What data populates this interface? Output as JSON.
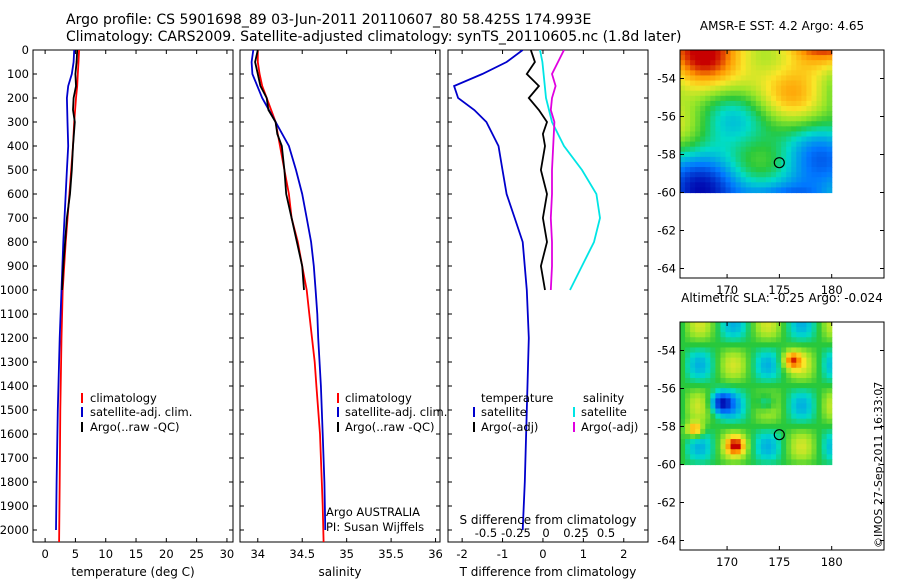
{
  "header": {
    "line1": "Argo profile: CS 5901698_89 03-Jun-2011 20110607_80 58.425S 174.993E",
    "line2": "Climatology: CARS2009. Satellite-adjusted climatology: synTS_20110605.nc (1.8d later)"
  },
  "stamp": "©IMOS 27-Sep-2011 16:33:07",
  "colors": {
    "climatology": "#ff0000",
    "satellite": "#0000cc",
    "argo": "#000000",
    "sat_s": "#00e5e5",
    "argo_s": "#e000e0"
  },
  "chart_data": [
    {
      "id": "temperature",
      "type": "line",
      "xlabel": "temperature (deg C)",
      "ylabel": "",
      "xlim": [
        -2,
        31
      ],
      "ylim": [
        2050,
        0
      ],
      "xticks": [
        0,
        5,
        10,
        15,
        20,
        25,
        30
      ],
      "xtick_labels": [
        "0",
        "5",
        "10",
        "15",
        "20",
        "25",
        "30"
      ],
      "yticks": [
        0,
        100,
        200,
        300,
        400,
        500,
        600,
        700,
        800,
        900,
        1000,
        1100,
        1200,
        1300,
        1400,
        1500,
        1600,
        1700,
        1800,
        1900,
        2000
      ],
      "ytick_labels": [
        "0",
        "100",
        "200",
        "300",
        "400",
        "500",
        "600",
        "700",
        "800",
        "900",
        "1000",
        "1100",
        "1200",
        "1300",
        "1400",
        "1500",
        "1600",
        "1700",
        "1800",
        "1900",
        "2000"
      ],
      "legend": [
        "climatology",
        "satellite-adj. clim.",
        "Argo(..raw -QC)"
      ],
      "series": [
        {
          "name": "climatology",
          "color": "#ff0000",
          "depth": [
            0,
            50,
            100,
            150,
            200,
            300,
            400,
            500,
            600,
            800,
            1000,
            1200,
            1500,
            1800,
            2050
          ],
          "values": [
            5.6,
            5.5,
            5.4,
            5.3,
            5.1,
            4.8,
            4.6,
            4.3,
            4.0,
            3.4,
            2.9,
            2.7,
            2.5,
            2.4,
            2.3
          ]
        },
        {
          "name": "satellite-adj. clim.",
          "color": "#0000cc",
          "depth": [
            0,
            50,
            100,
            150,
            200,
            300,
            400,
            500,
            600,
            800,
            1000,
            1200,
            1500,
            1800,
            2000
          ],
          "values": [
            4.8,
            4.7,
            4.4,
            3.8,
            3.6,
            3.7,
            3.8,
            3.6,
            3.4,
            3.0,
            2.7,
            2.4,
            2.1,
            1.9,
            1.8
          ]
        },
        {
          "name": "Argo(..raw -QC)",
          "color": "#000000",
          "depth": [
            0,
            50,
            100,
            150,
            200,
            250,
            300,
            400,
            500,
            600,
            700,
            800,
            900,
            1000
          ],
          "values": [
            5.3,
            5.2,
            5.0,
            5.1,
            4.7,
            4.6,
            4.9,
            4.6,
            4.4,
            4.1,
            3.6,
            3.3,
            3.0,
            2.8
          ]
        }
      ]
    },
    {
      "id": "salinity",
      "type": "line",
      "xlabel": "salinity",
      "ylabel": "",
      "xlim": [
        33.8,
        36.05
      ],
      "ylim": [
        2050,
        0
      ],
      "xticks": [
        34,
        34.5,
        35,
        35.5,
        36
      ],
      "xtick_labels": [
        "34",
        "34.5",
        "35",
        "35.5",
        "36"
      ],
      "legend": [
        "climatology",
        "satellite-adj. clim.",
        "Argo(..raw -QC)"
      ],
      "annotation": [
        "Argo AUSTRALIA",
        "PI: Susan Wijffels"
      ],
      "series": [
        {
          "name": "climatology",
          "color": "#ff0000",
          "depth": [
            0,
            50,
            100,
            150,
            200,
            300,
            400,
            500,
            600,
            700,
            800,
            900,
            1000,
            1100,
            1200,
            1300,
            1400,
            1500,
            1600,
            1700,
            1800,
            1900,
            2050
          ],
          "values": [
            34.0,
            34.0,
            34.02,
            34.05,
            34.1,
            34.2,
            34.25,
            34.3,
            34.35,
            34.38,
            34.45,
            34.5,
            34.55,
            34.58,
            34.61,
            34.64,
            34.66,
            34.68,
            34.7,
            34.71,
            34.72,
            34.73,
            34.74
          ]
        },
        {
          "name": "satellite-adj. clim.",
          "color": "#0000cc",
          "depth": [
            0,
            50,
            100,
            200,
            300,
            400,
            500,
            600,
            700,
            800,
            900,
            1000,
            1100,
            1200,
            1400,
            1600,
            1800,
            2000
          ],
          "values": [
            33.95,
            33.93,
            33.94,
            34.05,
            34.2,
            34.35,
            34.43,
            34.5,
            34.55,
            34.6,
            34.63,
            34.65,
            34.67,
            34.68,
            34.71,
            34.73,
            34.75,
            34.76
          ]
        },
        {
          "name": "Argo(..raw -QC)",
          "color": "#000000",
          "depth": [
            0,
            50,
            100,
            150,
            200,
            250,
            300,
            350,
            400,
            500,
            600,
            700,
            800,
            900,
            1000
          ],
          "values": [
            34.0,
            33.97,
            34.0,
            34.03,
            34.1,
            34.12,
            34.2,
            34.22,
            34.27,
            34.3,
            34.32,
            34.38,
            34.44,
            34.5,
            34.52
          ]
        }
      ]
    },
    {
      "id": "difference",
      "type": "line",
      "xlabel": "T difference from climatology",
      "top_label": "S difference from climatology",
      "xlim": [
        -2.35,
        2.6
      ],
      "ylim": [
        2050,
        0
      ],
      "xticks": [
        -2,
        -1,
        0,
        1,
        2
      ],
      "xtick_labels": [
        "-2",
        "-1",
        "0",
        "1",
        "2"
      ],
      "s_ticks": [
        -0.5,
        -0.25,
        0,
        0.25,
        0.5
      ],
      "s_tick_labels": [
        "-0.5",
        "-0.25",
        "0",
        "0.25",
        "0.5"
      ],
      "legend_t": [
        "temperature",
        "satellite",
        "Argo(-adj)"
      ],
      "legend_s": [
        "salinity",
        "satellite",
        "Argo(-adj)"
      ],
      "series": [
        {
          "name": "satellite",
          "group": "temperature",
          "color": "#0000cc",
          "depth": [
            0,
            50,
            100,
            150,
            200,
            250,
            300,
            400,
            500,
            600,
            700,
            800,
            1000,
            1200,
            1500,
            1800,
            2000
          ],
          "values": [
            -0.5,
            -0.9,
            -1.5,
            -2.2,
            -2.1,
            -1.7,
            -1.4,
            -1.1,
            -1.0,
            -0.9,
            -0.7,
            -0.5,
            -0.4,
            -0.35,
            -0.4,
            -0.45,
            -0.5
          ]
        },
        {
          "name": "Argo(-adj)",
          "group": "temperature",
          "color": "#000000",
          "depth": [
            0,
            50,
            100,
            150,
            200,
            250,
            300,
            350,
            400,
            500,
            600,
            700,
            800,
            900,
            1000
          ],
          "values": [
            -0.3,
            -0.2,
            -0.4,
            -0.1,
            -0.35,
            -0.1,
            0.1,
            0.0,
            0.05,
            -0.05,
            0.1,
            0.0,
            0.1,
            -0.05,
            0.05
          ]
        },
        {
          "name": "satellite",
          "group": "salinity",
          "color": "#00e5e5",
          "depth": [
            0,
            50,
            100,
            200,
            300,
            400,
            500,
            600,
            700,
            800,
            900,
            1000
          ],
          "values": [
            -0.05,
            -0.03,
            -0.02,
            0.0,
            0.05,
            0.15,
            0.3,
            0.42,
            0.45,
            0.4,
            0.3,
            0.2
          ]
        },
        {
          "name": "Argo(-adj)",
          "group": "salinity",
          "color": "#e000e0",
          "depth": [
            0,
            50,
            100,
            150,
            200,
            250,
            300,
            400,
            500,
            600,
            700,
            800,
            900,
            1000
          ],
          "values": [
            0.15,
            0.1,
            0.05,
            0.08,
            0.05,
            0.04,
            0.07,
            0.06,
            0.05,
            0.05,
            0.04,
            0.05,
            0.05,
            0.04
          ]
        }
      ]
    },
    {
      "id": "sst_map",
      "type": "heatmap",
      "title": "AMSR-E SST: 4.2 Argo: 4.65",
      "xticks": [
        170,
        175,
        180
      ],
      "xtick_labels": [
        "170",
        "175",
        "180"
      ],
      "yticks": [
        -54,
        -56,
        -58,
        -60,
        -62,
        -64
      ],
      "ytick_labels": [
        "-54",
        "-56",
        "-58",
        "-60",
        "-62",
        "-64"
      ],
      "xlim": [
        165.5,
        185
      ],
      "ylim": [
        -52.5,
        -64.5
      ],
      "data_extent": {
        "lon": [
          165.5,
          180
        ],
        "lat": [
          -52.5,
          -60
        ]
      },
      "float_position": [
        174.99,
        -58.43
      ]
    },
    {
      "id": "sla_map",
      "type": "heatmap",
      "title": "Altimetric SLA: -0.25 Argo: -0.024",
      "xticks": [
        170,
        175,
        180
      ],
      "xtick_labels": [
        "170",
        "175",
        "180"
      ],
      "yticks": [
        -54,
        -56,
        -58,
        -60,
        -62,
        -64
      ],
      "ytick_labels": [
        "-54",
        "-56",
        "-58",
        "-60",
        "-62",
        "-64"
      ],
      "xlim": [
        165.5,
        185
      ],
      "ylim": [
        -52.5,
        -64.5
      ],
      "data_extent": {
        "lon": [
          165.5,
          180
        ],
        "lat": [
          -52.5,
          -60
        ]
      },
      "float_position": [
        174.99,
        -58.43
      ]
    }
  ]
}
